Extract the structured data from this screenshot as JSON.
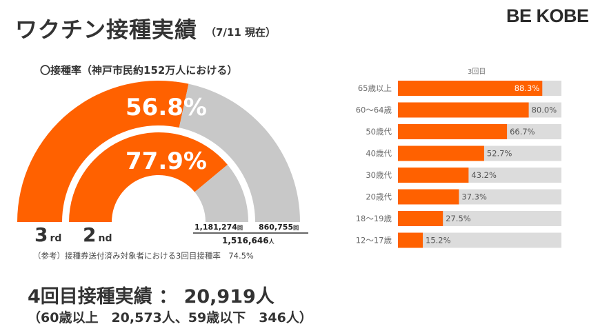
{
  "header": {
    "title": "ワクチン接種実績",
    "date": "（7/11 現在）",
    "brand": "BE KOBE"
  },
  "rate_label": "〇接種率（神戸市民約152万人における）",
  "colors": {
    "accent": "#ff6100",
    "remainder": "#c8c8c8",
    "bar_track": "#dcdcdc"
  },
  "chart_data": [
    {
      "type": "pie",
      "subtype": "half-donut",
      "rings": [
        {
          "name": "3rd",
          "name_suffix": "rd",
          "name_main": "3",
          "percent": 56.8,
          "percent_label": "56.8%",
          "count_label": "860,755",
          "count_unit": "回"
        },
        {
          "name": "2nd",
          "name_suffix": "nd",
          "name_main": "2",
          "percent": 77.9,
          "percent_label": "77.9%",
          "count_label": "1,181,274",
          "count_unit": "回"
        }
      ],
      "total_label": "1,516,646",
      "total_unit": "人"
    },
    {
      "type": "bar",
      "orientation": "horizontal",
      "title": "3回目",
      "categories": [
        "65歳以上",
        "60～64歳",
        "50歳代",
        "40歳代",
        "30歳代",
        "20歳代",
        "18～19歳",
        "12～17歳"
      ],
      "values": [
        88.3,
        80.0,
        66.7,
        52.7,
        43.2,
        37.3,
        27.5,
        15.2
      ],
      "value_labels": [
        "88.3%",
        "80.0%",
        "66.7%",
        "52.7%",
        "43.2%",
        "37.3%",
        "27.5%",
        "15.2%"
      ],
      "xlim": [
        0,
        100
      ]
    }
  ],
  "note": "（参考）接種券送付済み対象者における3回目接種率　74.5%",
  "fourth": {
    "summary": "4回目接種実績 ： 20,919人",
    "detail": "（60歳以上　20,573人、59歳以下　346人）"
  }
}
